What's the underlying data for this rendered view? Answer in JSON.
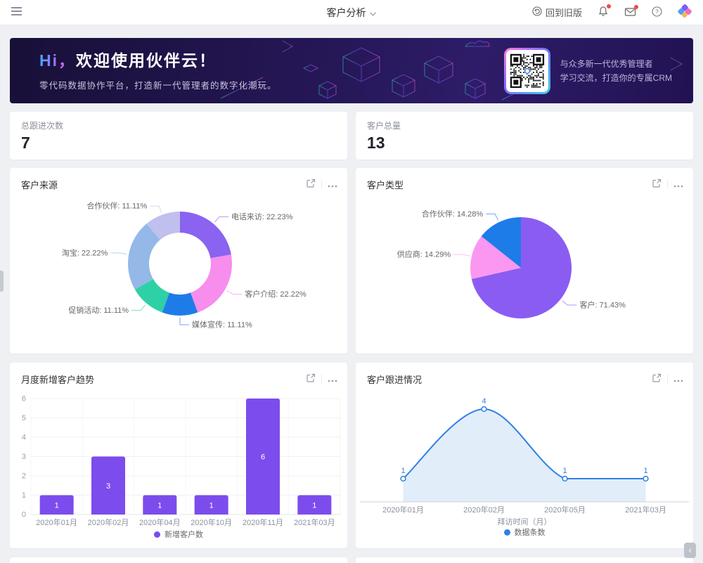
{
  "navbar": {
    "title": "客户分析",
    "back_to_old": "回到旧版",
    "icons": [
      "hamburger-icon",
      "title-caret-icon",
      "restore-circle-icon",
      "bell-icon",
      "mail-icon",
      "help-icon",
      "huoban-logo"
    ],
    "collapse_glyph": "‹"
  },
  "banner": {
    "greeting_hi": "Hi，",
    "greeting_rest": "欢迎使用伙伴云！",
    "subtitle": "零代码数据协作平台，打造新一代管理者的数字化潮玩。",
    "qr_caption_line1": "与众多新一代优秀管理者",
    "qr_caption_line2": "学习交流，打造你的专属CRM"
  },
  "stats": [
    {
      "label": "总跟进次数",
      "value": "7"
    },
    {
      "label": "客户总量",
      "value": "13"
    }
  ],
  "chart_data": [
    {
      "type": "pie",
      "variant": "donut",
      "title": "客户来源",
      "slices": [
        {
          "label": "电话来访",
          "pct": 22.23,
          "color": "#8a63f0"
        },
        {
          "label": "客户介绍",
          "pct": 22.22,
          "color": "#f78dec"
        },
        {
          "label": "媒体宣传",
          "pct": 11.11,
          "color": "#1e7ce9"
        },
        {
          "label": "促销活动",
          "pct": 11.11,
          "color": "#2ed0a6"
        },
        {
          "label": "淘宝",
          "pct": 22.22,
          "color": "#94b8e8"
        },
        {
          "label": "合作伙伴",
          "pct": 11.11,
          "color": "#c0bfee"
        }
      ]
    },
    {
      "type": "pie",
      "variant": "solid",
      "title": "客户类型",
      "slices": [
        {
          "label": "客户",
          "pct": 71.43,
          "color": "#8a5cf2"
        },
        {
          "label": "供应商",
          "pct": 14.29,
          "color": "#fb97f0"
        },
        {
          "label": "合作伙伴",
          "pct": 14.28,
          "color": "#1e7ce9"
        }
      ]
    },
    {
      "type": "bar",
      "title": "月度新增客户趋势",
      "categories": [
        "2020年01月",
        "2020年02月",
        "2020年04月",
        "2020年10月",
        "2020年11月",
        "2021年03月"
      ],
      "values": [
        1,
        3,
        1,
        1,
        6,
        1
      ],
      "legend": "新增客户数",
      "color": "#7d4ced",
      "ylim": [
        0,
        6
      ],
      "yticks": [
        0,
        1,
        2,
        3,
        4,
        5,
        6
      ],
      "grid": true
    },
    {
      "type": "line",
      "title": "客户跟进情况",
      "categories": [
        "2020年01月",
        "2020年02月",
        "2020年05月",
        "2021年03月"
      ],
      "values": [
        1,
        4,
        1,
        1
      ],
      "legend": "数据条数",
      "xlabel": "拜访时间（月）",
      "color": "#2f80e4",
      "area_color": "#e2edfa",
      "smooth": true,
      "area": true
    }
  ]
}
